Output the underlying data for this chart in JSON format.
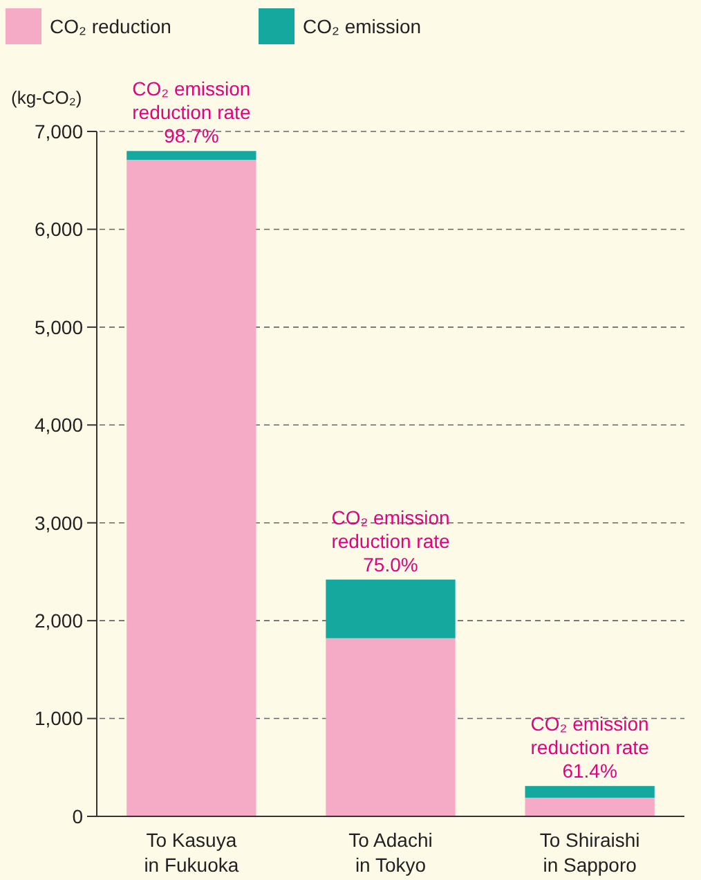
{
  "chart_data": {
    "type": "bar",
    "stacked": true,
    "ylabel": "(kg-CO₂)",
    "categories": [
      "To Kasuya\nin Fukuoka",
      "To Adachi\nin Tokyo",
      "To Shiraishi\nin Sapporo"
    ],
    "series": [
      {
        "name": "CO₂ reduction",
        "color": "#f5aac6",
        "values": [
          6710,
          1820,
          190
        ]
      },
      {
        "name": "CO₂ emission",
        "color": "#14a89e",
        "values": [
          90,
          600,
          120
        ]
      }
    ],
    "ylim": [
      0,
      7000
    ],
    "yticks": [
      0,
      {
        "value": 1000,
        "label": "1,000"
      },
      {
        "value": 2000,
        "label": "2,000"
      },
      {
        "value": 3000,
        "label": "3,000"
      },
      {
        "value": 4000,
        "label": "4,000"
      },
      {
        "value": 5000,
        "label": "5,000"
      },
      {
        "value": 6000,
        "label": "6,000"
      },
      {
        "value": 7000,
        "label": "7,000"
      }
    ],
    "grid": "y",
    "legend": "top left",
    "annotations": [
      {
        "text": "CO₂ emission\nreduction rate\n98.7%",
        "x": "To Kasuya\nin Fukuoka",
        "y": 6800
      },
      {
        "text": "CO₂ emission\nreduction rate\n75.0%",
        "x": "To Adachi\nin Tokyo",
        "y": 2420
      },
      {
        "text": "CO₂ emission\nreduction rate\n61.4%",
        "x": "To Shiraishi\nin Sapporo",
        "y": 310
      }
    ]
  }
}
